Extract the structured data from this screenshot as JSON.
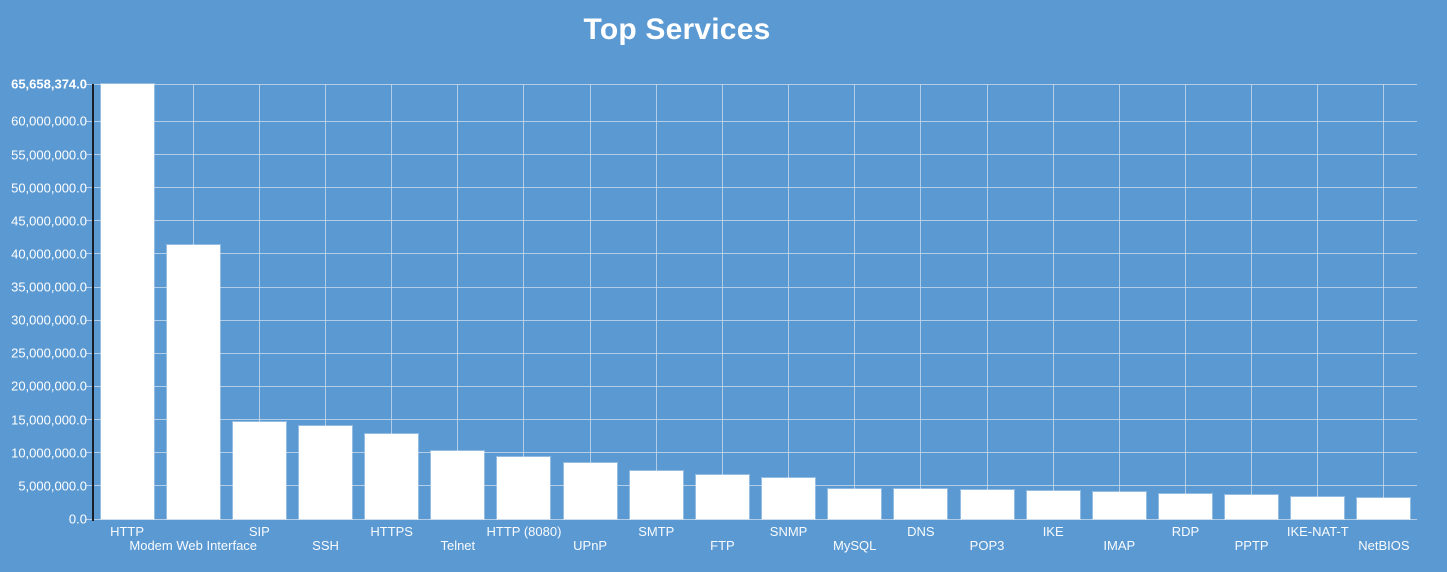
{
  "title": "Top Services",
  "colors": {
    "background": "#5b99d2",
    "bar": "#ffffff",
    "gridline": "#c2d6ec",
    "axis": "#1b1e24",
    "text": "#ffffff"
  },
  "chart_data": {
    "type": "bar",
    "title": "Top Services",
    "xlabel": "",
    "ylabel": "",
    "ylim": [
      0,
      65658374
    ],
    "grid": true,
    "legend": false,
    "bar_color": "#ffffff",
    "background_color": "#5b99d2",
    "categories": [
      "HTTP",
      "Modem Web Interface",
      "SIP",
      "SSH",
      "HTTPS",
      "Telnet",
      "HTTP (8080)",
      "UPnP",
      "SMTP",
      "FTP",
      "SNMP",
      "MySQL",
      "DNS",
      "POP3",
      "IKE",
      "IMAP",
      "RDP",
      "PPTP",
      "IKE-NAT-T",
      "NetBIOS"
    ],
    "values": [
      65658374,
      41400000,
      14700000,
      14100000,
      12900000,
      10300000,
      9300000,
      8500000,
      7200000,
      6700000,
      6200000,
      4600000,
      4500000,
      4400000,
      4200000,
      4000000,
      3700000,
      3600000,
      3300000,
      3200000
    ],
    "yticks": [
      {
        "value": 0,
        "label": "0.0"
      },
      {
        "value": 5000000,
        "label": "5,000,000.0"
      },
      {
        "value": 10000000,
        "label": "10,000,000.0"
      },
      {
        "value": 15000000,
        "label": "15,000,000.0"
      },
      {
        "value": 20000000,
        "label": "20,000,000.0"
      },
      {
        "value": 25000000,
        "label": "25,000,000.0"
      },
      {
        "value": 30000000,
        "label": "30,000,000.0"
      },
      {
        "value": 35000000,
        "label": "35,000,000.0"
      },
      {
        "value": 40000000,
        "label": "40,000,000.0"
      },
      {
        "value": 45000000,
        "label": "45,000,000.0"
      },
      {
        "value": 50000000,
        "label": "50,000,000.0"
      },
      {
        "value": 55000000,
        "label": "55,000,000.0"
      },
      {
        "value": 60000000,
        "label": "60,000,000.0"
      },
      {
        "value": 65658374,
        "label": "65,658,374.0",
        "bold": true
      }
    ]
  }
}
